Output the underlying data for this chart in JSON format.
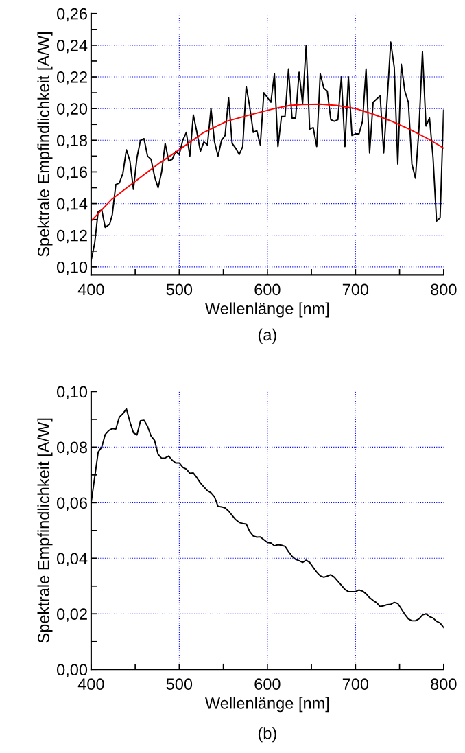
{
  "chart_data": [
    {
      "type": "line",
      "xlabel": "Wellenlänge [nm]",
      "ylabel": "Spektrale Empfindlichkeit [A/W]",
      "annotations": [
        "(a)"
      ],
      "xlim": [
        400,
        800
      ],
      "ylim": [
        0.095,
        0.26
      ],
      "xticks": [
        400,
        {
          "value": 450,
          "label": null
        },
        500,
        {
          "value": 550,
          "label": null
        },
        600,
        {
          "value": 650,
          "label": null
        },
        700,
        {
          "value": 750,
          "label": null
        },
        800
      ],
      "yticks": [
        {
          "value": 0.1,
          "label": "0,10"
        },
        {
          "value": 0.11,
          "label": null
        },
        {
          "value": 0.12,
          "label": "0,12"
        },
        {
          "value": 0.13,
          "label": null
        },
        {
          "value": 0.14,
          "label": "0,14"
        },
        {
          "value": 0.15,
          "label": null
        },
        {
          "value": 0.16,
          "label": "0,16"
        },
        {
          "value": 0.17,
          "label": null
        },
        {
          "value": 0.18,
          "label": "0,18"
        },
        {
          "value": 0.19,
          "label": null
        },
        {
          "value": 0.2,
          "label": "0,20"
        },
        {
          "value": 0.21,
          "label": null
        },
        {
          "value": 0.22,
          "label": "0,22"
        },
        {
          "value": 0.23,
          "label": null
        },
        {
          "value": 0.24,
          "label": "0,24"
        },
        {
          "value": 0.25,
          "label": null
        },
        {
          "value": 0.26,
          "label": "0,26"
        }
      ],
      "grid": true,
      "marker": "none",
      "line_style": "solid",
      "series": [
        {
          "color": "#000000",
          "x": [
            400,
            404,
            408,
            412,
            416,
            421,
            424,
            428,
            432,
            436,
            440,
            444,
            448,
            452,
            456,
            460,
            464,
            468,
            472,
            476,
            480,
            484,
            488,
            492,
            496,
            500,
            504,
            508,
            512,
            516,
            520,
            524,
            528,
            532,
            536,
            540,
            544,
            548,
            552,
            556,
            560,
            564,
            568,
            572,
            576,
            580,
            584,
            588,
            592,
            596,
            600,
            604,
            608,
            612,
            616,
            620,
            624,
            628,
            632,
            636,
            640,
            644,
            648,
            652,
            656,
            660,
            664,
            668,
            672,
            676,
            680,
            684,
            688,
            692,
            696,
            700,
            704,
            708,
            712,
            716,
            720,
            724,
            728,
            732,
            736,
            740,
            744,
            748,
            752,
            756,
            760,
            764,
            768,
            772,
            776,
            780,
            784,
            788,
            792,
            796,
            800
          ],
          "values": [
            0.104,
            0.115,
            0.135,
            0.136,
            0.125,
            0.127,
            0.133,
            0.152,
            0.153,
            0.159,
            0.174,
            0.167,
            0.149,
            0.169,
            0.18,
            0.181,
            0.17,
            0.168,
            0.157,
            0.15,
            0.16,
            0.178,
            0.167,
            0.168,
            0.173,
            0.171,
            0.18,
            0.185,
            0.17,
            0.196,
            0.185,
            0.173,
            0.179,
            0.177,
            0.2,
            0.179,
            0.17,
            0.18,
            0.183,
            0.207,
            0.178,
            0.175,
            0.171,
            0.176,
            0.214,
            0.201,
            0.185,
            0.186,
            0.177,
            0.21,
            0.207,
            0.204,
            0.222,
            0.176,
            0.195,
            0.195,
            0.225,
            0.194,
            0.194,
            0.223,
            0.203,
            0.24,
            0.187,
            0.188,
            0.176,
            0.222,
            0.213,
            0.211,
            0.193,
            0.192,
            0.193,
            0.22,
            0.176,
            0.22,
            0.183,
            0.184,
            0.184,
            0.192,
            0.225,
            0.172,
            0.204,
            0.206,
            0.208,
            0.172,
            0.206,
            0.242,
            0.226,
            0.165,
            0.228,
            0.211,
            0.204,
            0.165,
            0.156,
            0.187,
            0.236,
            0.189,
            0.194,
            0.169,
            0.129,
            0.131,
            0.199
          ]
        },
        {
          "color": "#ff0000",
          "x": [
            400,
            424,
            450,
            476,
            500,
            528,
            554,
            580,
            608,
            626,
            639,
            660,
            678,
            700,
            720,
            741,
            761,
            782,
            800
          ],
          "values": [
            0.129,
            0.143,
            0.154,
            0.165,
            0.174,
            0.185,
            0.192,
            0.196,
            0.2,
            0.202,
            0.2026,
            0.2028,
            0.202,
            0.2,
            0.1965,
            0.192,
            0.187,
            0.181,
            0.175
          ]
        }
      ]
    },
    {
      "type": "line",
      "xlabel": "Wellenlänge [nm]",
      "ylabel": "Spektrale Empfindlichkeit [A/W]",
      "annotations": [
        "(b)"
      ],
      "xlim": [
        400,
        800
      ],
      "ylim": [
        0,
        0.1
      ],
      "xticks": [
        400,
        {
          "value": 450,
          "label": null
        },
        500,
        {
          "value": 550,
          "label": null
        },
        600,
        {
          "value": 650,
          "label": null
        },
        700,
        {
          "value": 750,
          "label": null
        },
        800
      ],
      "yticks": [
        {
          "value": 0,
          "label": "0,00"
        },
        {
          "value": 0.01,
          "label": null
        },
        {
          "value": 0.02,
          "label": "0,02"
        },
        {
          "value": 0.03,
          "label": null
        },
        {
          "value": 0.04,
          "label": "0,04"
        },
        {
          "value": 0.05,
          "label": null
        },
        {
          "value": 0.06,
          "label": "0,06"
        },
        {
          "value": 0.07,
          "label": null
        },
        {
          "value": 0.08,
          "label": "0,08"
        },
        {
          "value": 0.09,
          "label": null
        },
        {
          "value": 0.1,
          "label": "0,10"
        }
      ],
      "grid": true,
      "marker": "none",
      "line_style": "solid",
      "series": [
        {
          "color": "#000000",
          "x": [
            400,
            408,
            412,
            416,
            420,
            424,
            428,
            432,
            436,
            440,
            444,
            448,
            452,
            456,
            460,
            464,
            468,
            472,
            476,
            480,
            484,
            488,
            492,
            496,
            500,
            504,
            508,
            512,
            516,
            520,
            524,
            528,
            532,
            536,
            540,
            544,
            548,
            552,
            556,
            560,
            564,
            568,
            572,
            576,
            580,
            584,
            588,
            592,
            596,
            600,
            604,
            608,
            612,
            616,
            620,
            624,
            628,
            632,
            636,
            640,
            644,
            648,
            652,
            656,
            660,
            664,
            668,
            672,
            676,
            680,
            684,
            688,
            692,
            696,
            700,
            704,
            708,
            712,
            716,
            720,
            724,
            728,
            732,
            736,
            740,
            744,
            748,
            752,
            756,
            760,
            764,
            768,
            772,
            776,
            780,
            784,
            788,
            792,
            796,
            800
          ],
          "values": [
            0.06,
            0.0782,
            0.08,
            0.0846,
            0.086,
            0.0867,
            0.0865,
            0.0908,
            0.092,
            0.0938,
            0.0891,
            0.0852,
            0.0844,
            0.0895,
            0.0897,
            0.0875,
            0.084,
            0.0824,
            0.0774,
            0.076,
            0.0761,
            0.0768,
            0.0753,
            0.0743,
            0.0743,
            0.0727,
            0.0721,
            0.0706,
            0.0707,
            0.069,
            0.0671,
            0.0657,
            0.0643,
            0.0636,
            0.0621,
            0.0587,
            0.0585,
            0.0581,
            0.057,
            0.0554,
            0.0539,
            0.0529,
            0.0525,
            0.0523,
            0.0496,
            0.048,
            0.0476,
            0.0477,
            0.0467,
            0.0457,
            0.0455,
            0.0445,
            0.0449,
            0.0447,
            0.0443,
            0.0424,
            0.0407,
            0.0396,
            0.0391,
            0.0385,
            0.0393,
            0.0385,
            0.0367,
            0.035,
            0.0337,
            0.0332,
            0.0336,
            0.0341,
            0.0332,
            0.0317,
            0.0303,
            0.0288,
            0.028,
            0.028,
            0.028,
            0.0286,
            0.0282,
            0.0272,
            0.0258,
            0.0248,
            0.024,
            0.0226,
            0.0229,
            0.0233,
            0.0234,
            0.0241,
            0.0237,
            0.0218,
            0.0198,
            0.0182,
            0.0175,
            0.0175,
            0.0182,
            0.0196,
            0.02,
            0.019,
            0.0185,
            0.0173,
            0.0167,
            0.0151
          ]
        }
      ]
    }
  ]
}
